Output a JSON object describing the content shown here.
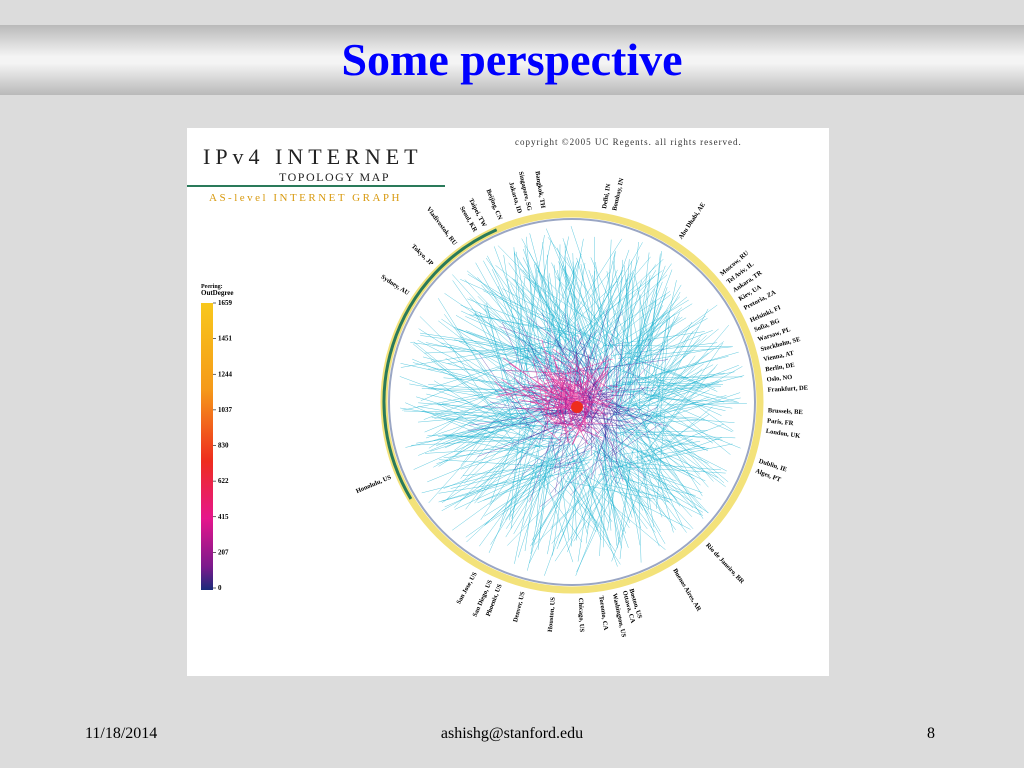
{
  "slide": {
    "title": "Some perspective",
    "footer": {
      "date": "11/18/2014",
      "email": "ashishg@stanford.edu",
      "page": "8"
    }
  },
  "figure": {
    "title": "IPv4 INTERNET",
    "subtitle": "TOPOLOGY MAP",
    "tagline": "AS-level INTERNET GRAPH",
    "copyright": "copyright ©2005 UC Regents. all rights reserved.",
    "legend": {
      "title": [
        "Peering:",
        "OutDegree"
      ],
      "labels": [
        "1659",
        "1451",
        "1244",
        "1037",
        "830",
        "622",
        "415",
        "207",
        "0"
      ]
    },
    "cities": [
      "Honolulu, US",
      "Sydney, AU",
      "Tokyo, JP",
      "Vladivostok, RU",
      "Seoul, KR",
      "Taipei, TW",
      "Beijing, CN",
      "Jakarta, ID",
      "Singapore, SG",
      "Bangkok, TH",
      "Delhi, IN",
      "Bombay, IN",
      "Abu Dhabi, AE",
      "Moscow, RU",
      "Tel Aviv, IL",
      "Ankara, TR",
      "Kiev, UA",
      "Pretoria, ZA",
      "Helsinki, FI",
      "Sofia, BG",
      "Warsaw, PL",
      "Stockholm, SE",
      "Vienna, AT",
      "Berlin, DE",
      "Oslo, NO",
      "Frankfurt, DE",
      "Brussels, BE",
      "Paris, FR",
      "London, UK",
      "Dublin, IE",
      "Alges, PT",
      "Rio de Janeiro, BR",
      "Buenos Aires, AR",
      "Boston, US",
      "Ottawa, CA",
      "Washington, US",
      "Toronto, CA",
      "Chicago, US",
      "Houston, US",
      "Denver, US",
      "Phoenix, US",
      "San Diego, US",
      "San Jose, US"
    ]
  }
}
